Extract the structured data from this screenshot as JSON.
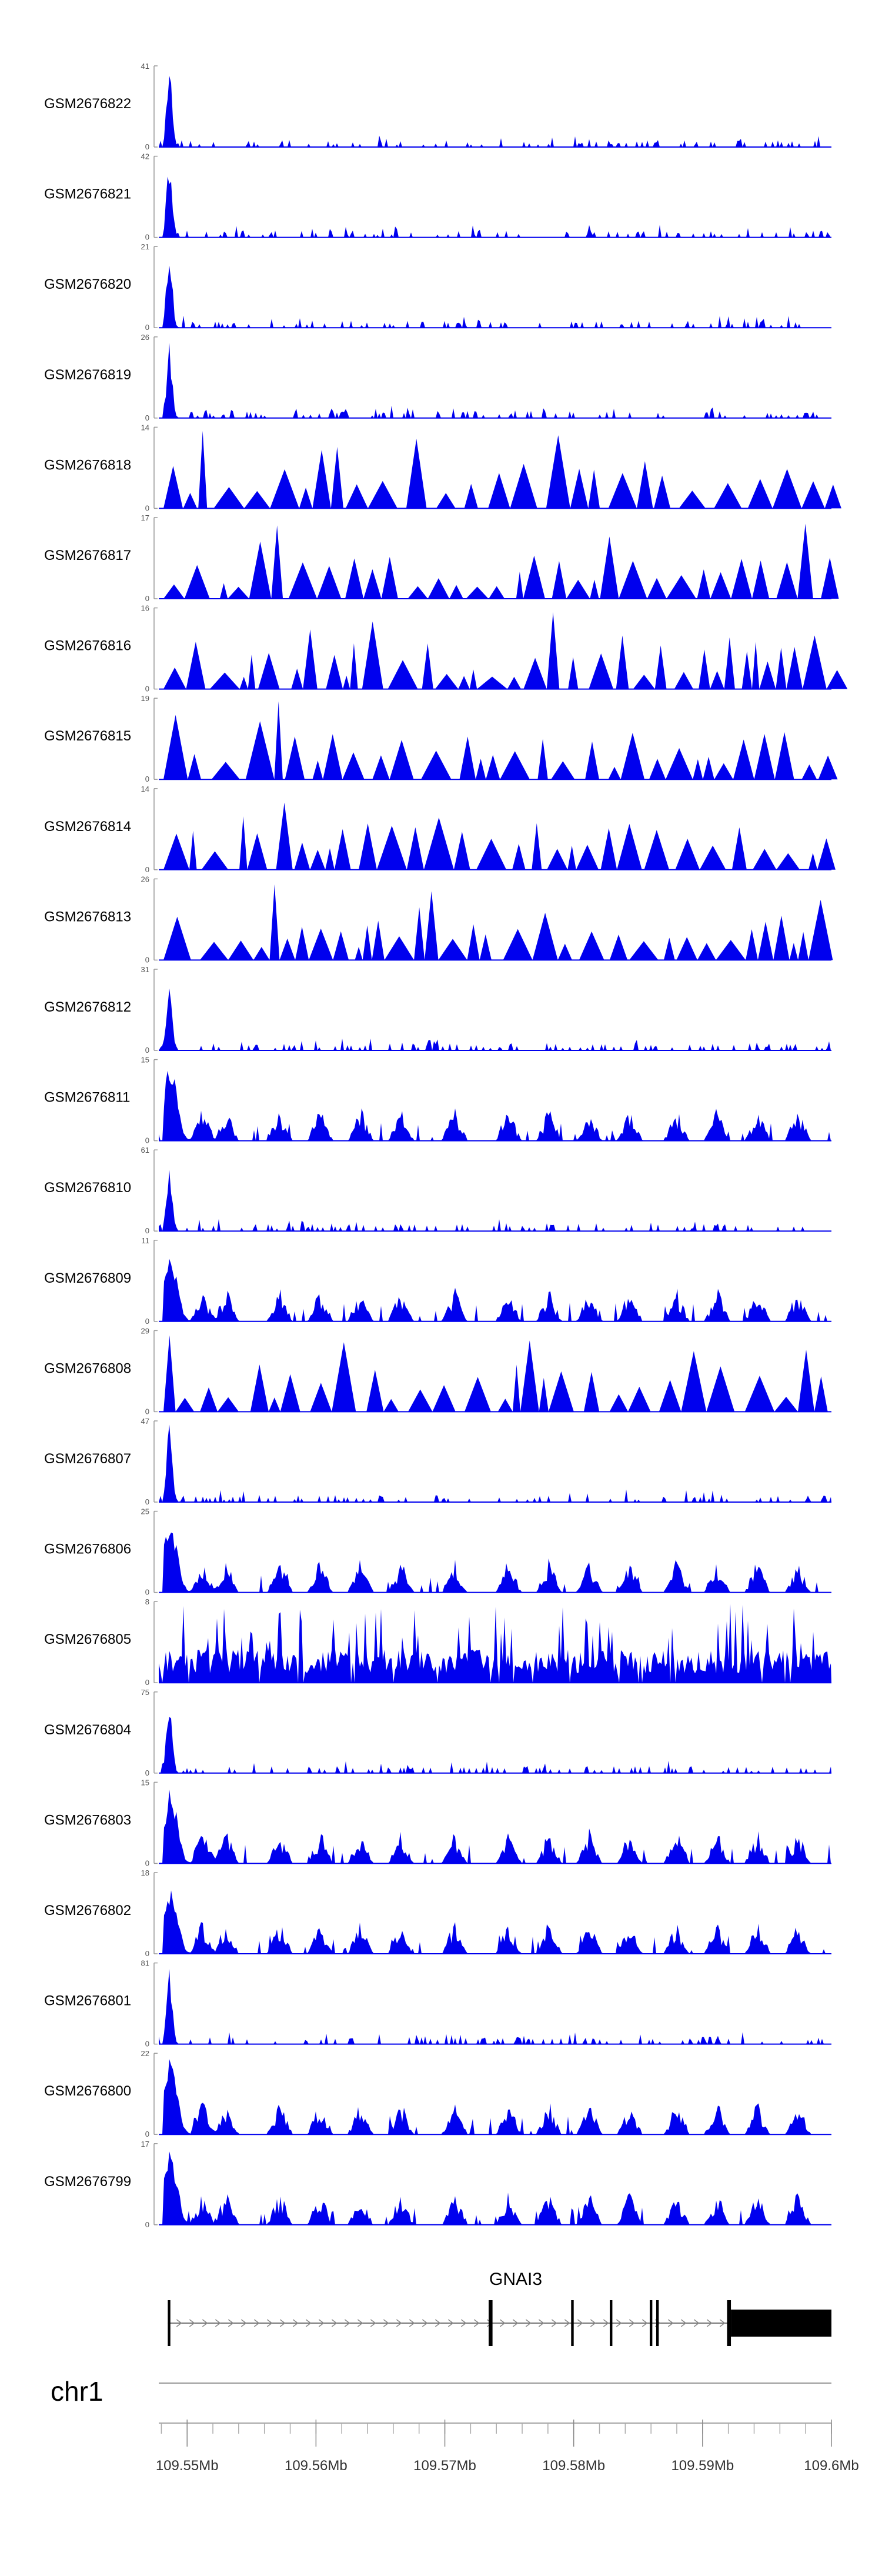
{
  "chart_data": {
    "type": "area",
    "title": "",
    "color": "#0000ee",
    "xlim": [
      109.5478,
      109.6
    ],
    "tracks": [
      {
        "name": "GSM2676822",
        "ymax": 41,
        "profile": "peak"
      },
      {
        "name": "GSM2676821",
        "ymax": 42,
        "profile": "peak"
      },
      {
        "name": "GSM2676820",
        "ymax": 21,
        "profile": "peak"
      },
      {
        "name": "GSM2676819",
        "ymax": 26,
        "profile": "peak"
      },
      {
        "name": "GSM2676818",
        "ymax": 14,
        "profile": "sparse"
      },
      {
        "name": "GSM2676817",
        "ymax": 17,
        "profile": "sparse"
      },
      {
        "name": "GSM2676816",
        "ymax": 16,
        "profile": "sparse"
      },
      {
        "name": "GSM2676815",
        "ymax": 19,
        "profile": "sparse"
      },
      {
        "name": "GSM2676814",
        "ymax": 14,
        "profile": "sparse"
      },
      {
        "name": "GSM2676813",
        "ymax": 26,
        "profile": "sparse"
      },
      {
        "name": "GSM2676812",
        "ymax": 31,
        "profile": "peak"
      },
      {
        "name": "GSM2676811",
        "ymax": 15,
        "profile": "exon"
      },
      {
        "name": "GSM2676810",
        "ymax": 61,
        "profile": "peak"
      },
      {
        "name": "GSM2676809",
        "ymax": 11,
        "profile": "exon"
      },
      {
        "name": "GSM2676808",
        "ymax": 29,
        "profile": "sparse"
      },
      {
        "name": "GSM2676807",
        "ymax": 47,
        "profile": "peak"
      },
      {
        "name": "GSM2676806",
        "ymax": 25,
        "profile": "exon"
      },
      {
        "name": "GSM2676805",
        "ymax": 8,
        "profile": "dense"
      },
      {
        "name": "GSM2676804",
        "ymax": 75,
        "profile": "peak"
      },
      {
        "name": "GSM2676803",
        "ymax": 15,
        "profile": "exon"
      },
      {
        "name": "GSM2676802",
        "ymax": 18,
        "profile": "exon"
      },
      {
        "name": "GSM2676801",
        "ymax": 81,
        "profile": "peak"
      },
      {
        "name": "GSM2676800",
        "ymax": 22,
        "profile": "exon"
      },
      {
        "name": "GSM2676799",
        "ymax": 17,
        "profile": "exon"
      }
    ],
    "gene": {
      "name": "GNAI3",
      "start": 109.5485,
      "end": 109.6,
      "strand": "+",
      "exons": [
        [
          109.5485,
          109.5487
        ],
        [
          109.5734,
          109.5737
        ],
        [
          109.5798,
          109.58
        ],
        [
          109.5828,
          109.583
        ],
        [
          109.5859,
          109.5861
        ],
        [
          109.5864,
          109.5866
        ],
        [
          109.5919,
          109.5922
        ],
        [
          109.5922,
          109.6
        ]
      ],
      "coding_start": 109.5922
    },
    "chromosome": "chr1",
    "axis": {
      "major_ticks": [
        109.55,
        109.56,
        109.57,
        109.58,
        109.59,
        109.6
      ],
      "labels": [
        "109.55Mb",
        "109.56Mb",
        "109.57Mb",
        "109.58Mb",
        "109.59Mb",
        "109.6Mb"
      ],
      "minor_step": 0.002
    }
  }
}
